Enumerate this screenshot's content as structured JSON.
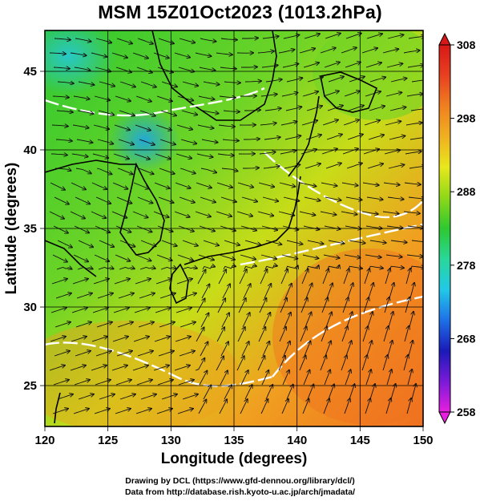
{
  "title": "MSM 15Z01Oct2023 (1013.2hPa)",
  "x_axis": {
    "label": "Longitude (degrees)",
    "range": [
      120,
      150
    ],
    "ticks": [
      120,
      125,
      130,
      135,
      140,
      145,
      150
    ]
  },
  "y_axis": {
    "label": "Latitude  (degrees)",
    "range": [
      22.4,
      47.6
    ],
    "ticks": [
      25,
      30,
      35,
      40,
      45
    ]
  },
  "colorbar": {
    "range": [
      258,
      308
    ],
    "ticks": [
      258,
      268,
      278,
      288,
      298,
      308
    ],
    "colors": [
      "#e81ee0",
      "#7a1ad8",
      "#1a1ab8",
      "#1e70e8",
      "#22c8e8",
      "#28d89a",
      "#2ec830",
      "#8ed818",
      "#e8e81c",
      "#f0b020",
      "#f08020",
      "#e84020",
      "#d81818"
    ]
  },
  "credits": {
    "line1": "Drawing by DCL (https://www.gfd-dennou.org/library/dcl/)",
    "line2": "Data from http://database.rish.kyoto-u.ac.jp/arch/jmadata/"
  }
}
